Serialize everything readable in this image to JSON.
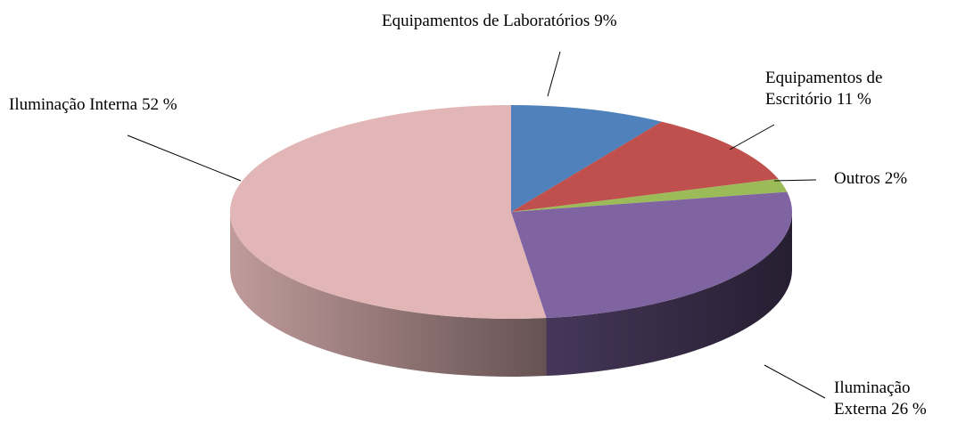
{
  "chart_data": {
    "type": "pie3d",
    "categories": [
      "Equipamentos de Laboratórios",
      "Equipamentos de Escritório",
      "Outros",
      "Iluminação Externa",
      "Iluminação Interna"
    ],
    "values": [
      9,
      11,
      2,
      26,
      52
    ],
    "value_labels": [
      "9%",
      "11 %",
      "2%",
      "26 %",
      "52 %"
    ],
    "colors": [
      "#4f81bd",
      "#c0504d",
      "#9bbb59",
      "#8064a2",
      "#e2b6b6"
    ]
  }
}
